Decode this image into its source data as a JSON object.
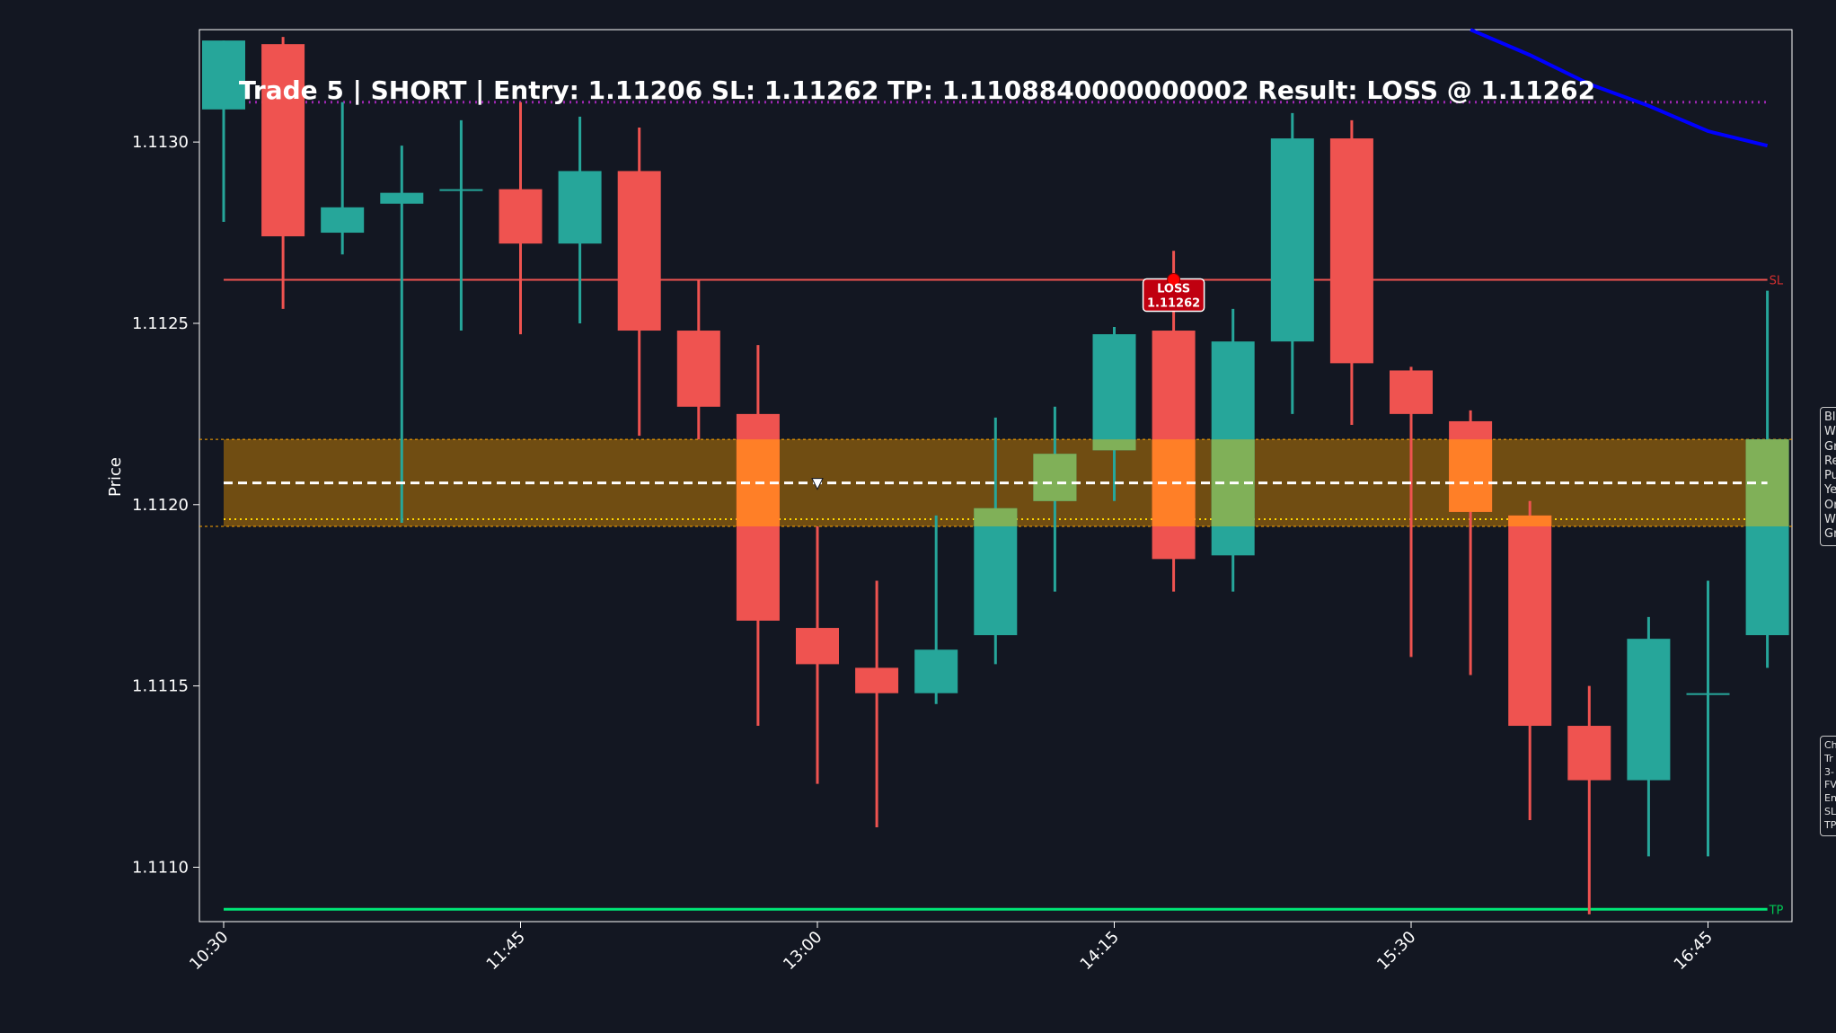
{
  "chart_data": {
    "type": "candlestick",
    "title": "Trade 5 | SHORT | Entry: 1.11206 SL: 1.11262 TP: 1.1108840000000002 Result: LOSS @ 1.11262",
    "ylabel": "Price",
    "xlabel": "",
    "ylim": [
      1.11085,
      1.11331
    ],
    "y_ticks": [
      "1.1110",
      "1.1115",
      "1.1120",
      "1.1125",
      "1.1130"
    ],
    "x_ticks": [
      {
        "index": 0,
        "label": "10:30"
      },
      {
        "index": 5,
        "label": "11:45"
      },
      {
        "index": 10,
        "label": "13:00"
      },
      {
        "index": 15,
        "label": "14:15"
      },
      {
        "index": 20,
        "label": "15:30"
      },
      {
        "index": 25,
        "label": "16:45"
      }
    ],
    "candles": [
      {
        "o": 1.11309,
        "h": 1.11328,
        "l": 1.11278,
        "c": 1.11328
      },
      {
        "o": 1.11327,
        "h": 1.11329,
        "l": 1.11254,
        "c": 1.11274
      },
      {
        "o": 1.11275,
        "h": 1.11311,
        "l": 1.11269,
        "c": 1.11282
      },
      {
        "o": 1.11283,
        "h": 1.11299,
        "l": 1.11195,
        "c": 1.11286
      },
      {
        "o": 1.11287,
        "h": 1.11306,
        "l": 1.11248,
        "c": 1.11287
      },
      {
        "o": 1.11287,
        "h": 1.11311,
        "l": 1.11247,
        "c": 1.11272
      },
      {
        "o": 1.11272,
        "h": 1.11307,
        "l": 1.1125,
        "c": 1.11292
      },
      {
        "o": 1.11292,
        "h": 1.11304,
        "l": 1.11219,
        "c": 1.11248
      },
      {
        "o": 1.11248,
        "h": 1.11262,
        "l": 1.11218,
        "c": 1.11227
      },
      {
        "o": 1.11225,
        "h": 1.11244,
        "l": 1.11139,
        "c": 1.11168
      },
      {
        "o": 1.11166,
        "h": 1.11194,
        "l": 1.11123,
        "c": 1.11156
      },
      {
        "o": 1.11155,
        "h": 1.11179,
        "l": 1.11111,
        "c": 1.11148
      },
      {
        "o": 1.11148,
        "h": 1.11197,
        "l": 1.11145,
        "c": 1.1116
      },
      {
        "o": 1.11164,
        "h": 1.11224,
        "l": 1.11156,
        "c": 1.11199
      },
      {
        "o": 1.11201,
        "h": 1.11227,
        "l": 1.11176,
        "c": 1.11214
      },
      {
        "o": 1.11215,
        "h": 1.11249,
        "l": 1.11201,
        "c": 1.11247
      },
      {
        "o": 1.11248,
        "h": 1.1127,
        "l": 1.11176,
        "c": 1.11185
      },
      {
        "o": 1.11186,
        "h": 1.11254,
        "l": 1.11176,
        "c": 1.11245
      },
      {
        "o": 1.11245,
        "h": 1.11308,
        "l": 1.11225,
        "c": 1.11301
      },
      {
        "o": 1.11301,
        "h": 1.11306,
        "l": 1.11222,
        "c": 1.11239
      },
      {
        "o": 1.11237,
        "h": 1.11238,
        "l": 1.11158,
        "c": 1.11225
      },
      {
        "o": 1.11223,
        "h": 1.11226,
        "l": 1.11153,
        "c": 1.11198
      },
      {
        "o": 1.11197,
        "h": 1.11201,
        "l": 1.11113,
        "c": 1.11139
      },
      {
        "o": 1.11139,
        "h": 1.1115,
        "l": 1.11087,
        "c": 1.11124
      },
      {
        "o": 1.11124,
        "h": 1.11169,
        "l": 1.11103,
        "c": 1.11163
      },
      {
        "o": 1.11148,
        "h": 1.11179,
        "l": 1.11103,
        "c": 1.11148
      },
      {
        "o": 1.11164,
        "h": 1.11259,
        "l": 1.11155,
        "c": 1.11218
      }
    ],
    "zone": {
      "top": 1.11218,
      "bottom": 1.11194
    },
    "zone_mid": 1.11206,
    "sl": 1.11262,
    "tp": 1.110884,
    "purple_level": 1.11311,
    "yellow_dotted": 1.11196,
    "sl_label": "SL",
    "tp_label": "TP",
    "trendline": [
      {
        "i": 21.0,
        "y": 1.11331
      },
      {
        "i": 22.0,
        "y": 1.11324
      },
      {
        "i": 23.0,
        "y": 1.11316
      },
      {
        "i": 24.0,
        "y": 1.1131
      },
      {
        "i": 25.0,
        "y": 1.11303
      },
      {
        "i": 26.0,
        "y": 1.11299
      }
    ],
    "entry_marker_index": 10,
    "loss_marker": {
      "index": 16,
      "price": 1.11262,
      "label": "LOSS",
      "value": "1.11262"
    },
    "colors": {
      "background": "#131722",
      "bull": "#26a69a",
      "bear": "#ef5350",
      "zone_fill": "#ffa500",
      "overlap_orange": "#ff7f27",
      "overlap_green": "#80b058",
      "sl": "#ef5350",
      "tp": "#00e676",
      "purple": "#9c27b0",
      "yellow": "#ffd700",
      "trendline": "#0000ff",
      "loss_box": "#c00010"
    }
  },
  "legends": {
    "main": [
      "Bl",
      "W",
      "Gr",
      "Re",
      "Pu",
      "Ye",
      "Or",
      "W",
      "Gr"
    ],
    "info": [
      "Ch",
      "Tr",
      "3-",
      "FV",
      "En",
      "SL",
      "TP"
    ]
  }
}
